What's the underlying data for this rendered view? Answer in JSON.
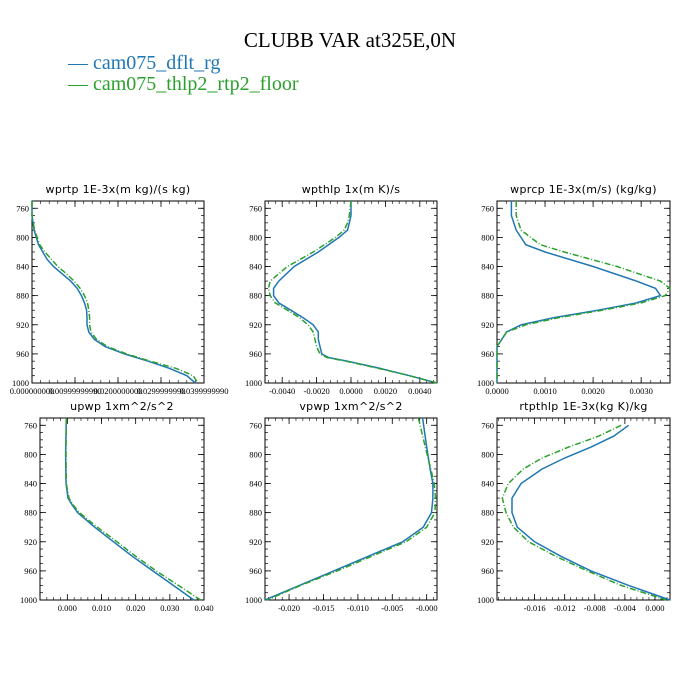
{
  "title": "CLUBB VAR at325E,0N",
  "legend": [
    {
      "label": "— cam075_dflt_rg",
      "color": "#1f77b4"
    },
    {
      "label": "— cam075_thlp2_rtp2_floor",
      "color": "#2ca02c"
    }
  ],
  "chart_data": [
    {
      "type": "line",
      "title": "wprtp  1E-3x(m kg)/(s kg)",
      "xlim": [
        0.0,
        0.04
      ],
      "ylim": [
        1000,
        750
      ],
      "xticks": [
        0.0,
        0.01,
        0.02,
        0.03,
        0.04
      ],
      "xtick_labels": [
        "0.000000000",
        "0.00999999990",
        "0.0200000000",
        "0.0299999990",
        "0.0399999990"
      ],
      "yticks": [
        760,
        800,
        840,
        880,
        920,
        960,
        1000
      ],
      "series": [
        {
          "name": "cam075_dflt_rg",
          "y": [
            750,
            770,
            790,
            800,
            810,
            820,
            830,
            840,
            850,
            860,
            870,
            880,
            890,
            900,
            910,
            920,
            930,
            940,
            950,
            960,
            970,
            980,
            990,
            1000
          ],
          "x": [
            0.0,
            0.0,
            0.0005,
            0.001,
            0.0015,
            0.0025,
            0.0035,
            0.005,
            0.007,
            0.009,
            0.0105,
            0.0115,
            0.0122,
            0.0127,
            0.0128,
            0.0128,
            0.0132,
            0.0145,
            0.017,
            0.0215,
            0.027,
            0.032,
            0.036,
            0.038
          ]
        },
        {
          "name": "cam075_thlp2_rtp2_floor",
          "y": [
            750,
            770,
            790,
            800,
            810,
            820,
            830,
            840,
            850,
            860,
            870,
            880,
            890,
            900,
            910,
            920,
            930,
            940,
            950,
            960,
            970,
            980,
            990,
            1000
          ],
          "x": [
            0.0,
            0.0,
            0.0006,
            0.0012,
            0.0018,
            0.003,
            0.0045,
            0.006,
            0.008,
            0.0098,
            0.0112,
            0.0122,
            0.0129,
            0.0132,
            0.0134,
            0.0134,
            0.0137,
            0.015,
            0.0175,
            0.022,
            0.0275,
            0.0335,
            0.0375,
            0.0385
          ]
        }
      ]
    },
    {
      "type": "line",
      "title": "wpthlp  1x(m K)/s",
      "xlim": [
        -0.005,
        0.005
      ],
      "ylim": [
        1000,
        750
      ],
      "xticks": [
        -0.004,
        -0.002,
        0.0,
        0.002,
        0.004
      ],
      "xtick_labels": [
        "-0.0040",
        "-0.0020",
        "0.0000",
        "0.0020",
        "0.0040"
      ],
      "yticks": [
        760,
        800,
        840,
        880,
        920,
        960,
        1000
      ],
      "series": [
        {
          "name": "cam075_dflt_rg",
          "y": [
            750,
            770,
            780,
            790,
            800,
            820,
            840,
            860,
            870,
            880,
            890,
            900,
            910,
            920,
            930,
            940,
            950,
            960,
            965,
            970,
            980,
            990,
            1000
          ],
          "x": [
            0.0,
            0.0,
            -0.0001,
            -0.0002,
            -0.0007,
            -0.0019,
            -0.0033,
            -0.0042,
            -0.0045,
            -0.0045,
            -0.0042,
            -0.0035,
            -0.0028,
            -0.0022,
            -0.0019,
            -0.0019,
            -0.0018,
            -0.0017,
            -0.0013,
            -0.0002,
            0.0017,
            0.0034,
            0.005
          ]
        },
        {
          "name": "cam075_thlp2_rtp2_floor",
          "y": [
            750,
            770,
            780,
            790,
            800,
            820,
            840,
            860,
            870,
            880,
            890,
            900,
            910,
            920,
            930,
            940,
            950,
            960,
            965,
            970,
            980,
            990,
            1000
          ],
          "x": [
            0.0,
            -0.0001,
            -0.0002,
            -0.0004,
            -0.0009,
            -0.0022,
            -0.0037,
            -0.0047,
            -0.0048,
            -0.0047,
            -0.0044,
            -0.0037,
            -0.003,
            -0.0025,
            -0.0022,
            -0.0021,
            -0.002,
            -0.0018,
            -0.0014,
            -0.0003,
            0.0016,
            0.0034,
            0.005
          ]
        }
      ]
    },
    {
      "type": "line",
      "title": "wprcp  1E-3x(m/s) (kg/kg)",
      "xlim": [
        0.0,
        0.0036
      ],
      "ylim": [
        1000,
        750
      ],
      "xticks": [
        0.0,
        0.001,
        0.002,
        0.003
      ],
      "xtick_labels": [
        "0.0000",
        "0.0010",
        "0.0020",
        "0.0030"
      ],
      "yticks": [
        760,
        800,
        840,
        880,
        920,
        960,
        1000
      ],
      "series": [
        {
          "name": "cam075_dflt_rg",
          "y": [
            750,
            770,
            790,
            800,
            810,
            820,
            840,
            860,
            870,
            880,
            890,
            900,
            910,
            920,
            930,
            940,
            950,
            960,
            1000
          ],
          "x": [
            0.0003,
            0.0003,
            0.0004,
            0.0005,
            0.0006,
            0.001,
            0.002,
            0.0029,
            0.0033,
            0.0034,
            0.0029,
            0.0021,
            0.0012,
            0.0005,
            0.0002,
            0.0001,
            0.0,
            0.0,
            0.0
          ]
        },
        {
          "name": "cam075_thlp2_rtp2_floor",
          "y": [
            750,
            770,
            790,
            800,
            810,
            820,
            840,
            860,
            870,
            880,
            890,
            900,
            910,
            920,
            930,
            940,
            950,
            960,
            1000
          ],
          "x": [
            0.0004,
            0.0004,
            0.0005,
            0.0007,
            0.0009,
            0.0014,
            0.0025,
            0.0034,
            0.0036,
            0.0035,
            0.003,
            0.0022,
            0.0013,
            0.0006,
            0.0002,
            0.0001,
            0.0,
            0.0,
            0.0
          ]
        }
      ]
    },
    {
      "type": "line",
      "title": "upwp  1xm^2/s^2",
      "xlim": [
        -0.008,
        0.04
      ],
      "ylim": [
        1000,
        750
      ],
      "xticks": [
        0.0,
        0.01,
        0.02,
        0.03,
        0.04
      ],
      "xtick_labels": [
        "0.000",
        "0.010",
        "0.020",
        "0.030",
        "0.040"
      ],
      "yticks": [
        760,
        800,
        840,
        880,
        920,
        960,
        1000
      ],
      "series": [
        {
          "name": "cam075_dflt_rg",
          "y": [
            750,
            800,
            840,
            860,
            870,
            880,
            900,
            920,
            940,
            960,
            980,
            1000
          ],
          "x": [
            -0.0003,
            -0.0005,
            -0.0004,
            0.0002,
            0.0015,
            0.003,
            0.008,
            0.0135,
            0.019,
            0.025,
            0.031,
            0.037
          ]
        },
        {
          "name": "cam075_thlp2_rtp2_floor",
          "y": [
            750,
            800,
            840,
            860,
            870,
            880,
            900,
            920,
            940,
            960,
            980,
            1000
          ],
          "x": [
            -0.0003,
            -0.0004,
            -0.0003,
            0.0005,
            0.0018,
            0.0035,
            0.0088,
            0.0145,
            0.02,
            0.026,
            0.0325,
            0.039
          ]
        }
      ]
    },
    {
      "type": "line",
      "title": "vpwp  1xm^2/s^2",
      "xlim": [
        -0.0235,
        0.0015
      ],
      "ylim": [
        1000,
        750
      ],
      "xticks": [
        -0.02,
        -0.015,
        -0.01,
        -0.005,
        0.0
      ],
      "xtick_labels": [
        "-0.020",
        "-0.015",
        "-0.010",
        "-0.005",
        "-0.000"
      ],
      "yticks": [
        760,
        800,
        840,
        880,
        920,
        960,
        1000
      ],
      "series": [
        {
          "name": "cam075_dflt_rg",
          "y": [
            750,
            790,
            820,
            840,
            860,
            880,
            900,
            920,
            940,
            960,
            980,
            1000
          ],
          "x": [
            -0.0006,
            0.0,
            0.0005,
            0.0009,
            0.0009,
            0.0007,
            -0.0005,
            -0.0035,
            -0.0085,
            -0.0135,
            -0.0185,
            -0.0235
          ]
        },
        {
          "name": "cam075_thlp2_rtp2_floor",
          "y": [
            750,
            790,
            820,
            840,
            860,
            880,
            900,
            920,
            940,
            960,
            980,
            1000
          ],
          "x": [
            -0.0012,
            -0.0002,
            0.0006,
            0.0011,
            0.0013,
            0.0012,
            0.0,
            -0.003,
            -0.008,
            -0.013,
            -0.0183,
            -0.0232
          ]
        }
      ]
    },
    {
      "type": "line",
      "title": "rtpthlp  1E-3x(kg K)/kg",
      "xlim": [
        -0.021,
        0.002
      ],
      "ylim": [
        1000,
        750
      ],
      "xticks": [
        -0.016,
        -0.012,
        -0.008,
        -0.004,
        0.0
      ],
      "xtick_labels": [
        "-0.016",
        "-0.012",
        "-0.008",
        "-0.004",
        "0.000"
      ],
      "yticks": [
        760,
        800,
        840,
        880,
        920,
        960,
        1000
      ],
      "series": [
        {
          "name": "cam075_dflt_rg",
          "y": [
            760,
            775,
            790,
            805,
            820,
            840,
            860,
            880,
            900,
            920,
            940,
            960,
            980,
            1000
          ],
          "x": [
            -0.0035,
            -0.0055,
            -0.0085,
            -0.012,
            -0.015,
            -0.0178,
            -0.019,
            -0.019,
            -0.0183,
            -0.016,
            -0.0125,
            -0.0085,
            -0.0035,
            0.002
          ]
        },
        {
          "name": "cam075_thlp2_rtp2_floor",
          "y": [
            760,
            775,
            790,
            805,
            820,
            840,
            860,
            880,
            900,
            920,
            940,
            960,
            980,
            1000
          ],
          "x": [
            -0.0045,
            -0.0075,
            -0.0115,
            -0.015,
            -0.0175,
            -0.0195,
            -0.0203,
            -0.0198,
            -0.0188,
            -0.0168,
            -0.0132,
            -0.009,
            -0.0045,
            0.0015
          ]
        }
      ]
    }
  ]
}
